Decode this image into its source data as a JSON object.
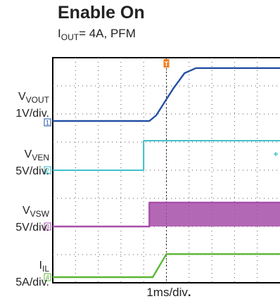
{
  "title": "Enable On",
  "subtitle": {
    "prefix": "I",
    "sub": "OUT",
    "rest": "= 4A, PFM"
  },
  "xlabel": {
    "value": "1ms/div",
    "dot": "."
  },
  "trigger_marker": "T",
  "colors": {
    "vout": "#2550a6",
    "ven": "#28b8c4",
    "vsw": "#a64ea8",
    "il": "#5cb534",
    "trigger": "#f07e22",
    "grid": "#000000"
  },
  "chart_data": {
    "type": "line",
    "title": "Enable On",
    "subtitle": "IOUT= 4A, PFM",
    "xlabel": "1ms/div.",
    "x_divisions": 10,
    "y_divisions": 8,
    "grid": true,
    "series": [
      {
        "name": "VOUT",
        "unit_label": "1V/div.",
        "marker": "1",
        "points": [
          [
            0,
            0.05
          ],
          [
            4.25,
            0.05
          ],
          [
            4.55,
            0.25
          ],
          [
            5.3,
            1.2
          ],
          [
            5.8,
            1.75
          ],
          [
            6.3,
            1.93
          ],
          [
            10,
            1.93
          ]
        ]
      },
      {
        "name": "VEN",
        "unit_label": "5V/div.",
        "marker": "2",
        "points": [
          [
            0,
            0
          ],
          [
            4.0,
            0
          ],
          [
            4.0,
            1.05
          ],
          [
            10,
            1.05
          ]
        ]
      },
      {
        "name": "VSW",
        "unit_label": "5V/div.",
        "marker": "3",
        "points": [
          [
            0,
            0
          ],
          [
            4.25,
            0
          ],
          [
            4.25,
            0.85
          ],
          [
            10,
            0.85
          ]
        ]
      },
      {
        "name": "IL",
        "unit_label": "5A/div.",
        "marker": "4",
        "points": [
          [
            0,
            0
          ],
          [
            4.4,
            0
          ],
          [
            5.0,
            0.82
          ],
          [
            10,
            0.82
          ]
        ]
      }
    ]
  }
}
